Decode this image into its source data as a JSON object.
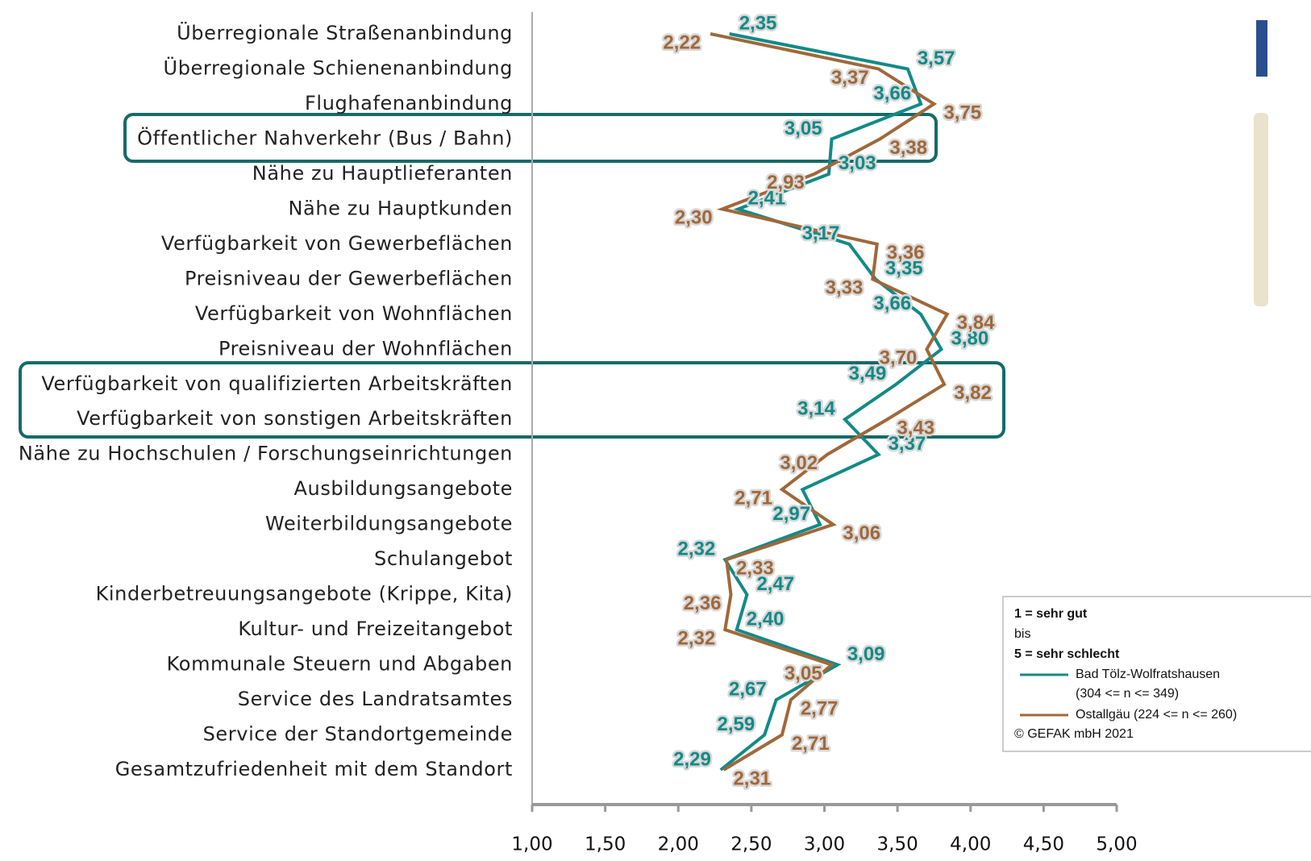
{
  "chart_data": {
    "type": "line",
    "orientation": "horizontal",
    "categories": [
      "Überregionale Straßenanbindung",
      "Überregionale Schienenanbindung",
      "Flughafenanbindung",
      "Öffentlicher Nahverkehr (Bus / Bahn)",
      "Nähe zu Hauptlieferanten",
      "Nähe zu Hauptkunden",
      "Verfügbarkeit von Gewerbeflächen",
      "Preisniveau der Gewerbeflächen",
      "Verfügbarkeit von Wohnflächen",
      "Preisniveau der Wohnflächen",
      "Verfügbarkeit von qualifizierten Arbeitskräften",
      "Verfügbarkeit von sonstigen Arbeitskräften",
      "Nähe zu Hochschulen / Forschungseinrichtungen",
      "Ausbildungsangebote",
      "Weiterbildungsangebote",
      "Schulangebot",
      "Kinderbetreuungsangebote (Krippe, Kita)",
      "Kultur- und Freizeitangebot",
      "Kommunale Steuern und Abgaben",
      "Service des Landratsamtes",
      "Service der Standortgemeinde",
      "Gesamtzufriedenheit mit dem Standort"
    ],
    "series": [
      {
        "name": "Bad Tölz-Wolfratshausen",
        "note": "(304 <= n <= 349)",
        "color": "#138a87",
        "values": [
          2.35,
          3.57,
          3.66,
          3.05,
          3.03,
          2.41,
          3.17,
          3.35,
          3.66,
          3.8,
          3.49,
          3.14,
          3.37,
          2.85,
          2.97,
          2.32,
          2.47,
          2.4,
          3.09,
          2.67,
          2.59,
          2.29
        ],
        "value_labels": [
          "2,35",
          "3,57",
          "3,66",
          "3,05",
          "3,03",
          "2,41",
          "3,17",
          "3,35",
          "3,66",
          "3,80",
          "3,49",
          "3,14",
          "3,37",
          null,
          "2,97",
          "2,32",
          "2,47",
          "2,40",
          "3,09",
          "2,67",
          "2,59",
          "2,29"
        ]
      },
      {
        "name": "Ostallgäu (224 <= n <= 260)",
        "color": "#a0683a",
        "values": [
          2.22,
          3.37,
          3.75,
          3.38,
          2.93,
          2.3,
          3.36,
          3.33,
          3.84,
          3.7,
          3.82,
          3.43,
          3.02,
          2.71,
          3.06,
          2.33,
          2.36,
          2.32,
          3.05,
          2.77,
          2.71,
          2.31
        ],
        "value_labels": [
          "2,22",
          "3,37",
          "3,75",
          "3,38",
          "2,93",
          "2,30",
          "3,36",
          "3,33",
          "3,84",
          "3,70",
          "3,82",
          "3,43",
          "3,02",
          "2,71",
          "3,06",
          "2,33",
          "2,36",
          "2,32",
          "3,05",
          "2,77",
          "2,71",
          "2,31"
        ]
      }
    ],
    "xlim": [
      1,
      5
    ],
    "xticks": [
      {
        "value": 1,
        "label": "1,00"
      },
      {
        "value": 1.5,
        "label": "1,50"
      },
      {
        "value": 2,
        "label": "2,00"
      },
      {
        "value": 2.5,
        "label": "2,50"
      },
      {
        "value": 3,
        "label": "3,00"
      },
      {
        "value": 3.5,
        "label": "3,50"
      },
      {
        "value": 4,
        "label": "4,00"
      },
      {
        "value": 4.5,
        "label": "4,50"
      },
      {
        "value": 5,
        "label": "5,00"
      }
    ],
    "legend_note": [
      "1 = sehr gut",
      "bis",
      "5 = sehr schlecht"
    ],
    "copyright": "© GEFAK mbH 2021"
  }
}
